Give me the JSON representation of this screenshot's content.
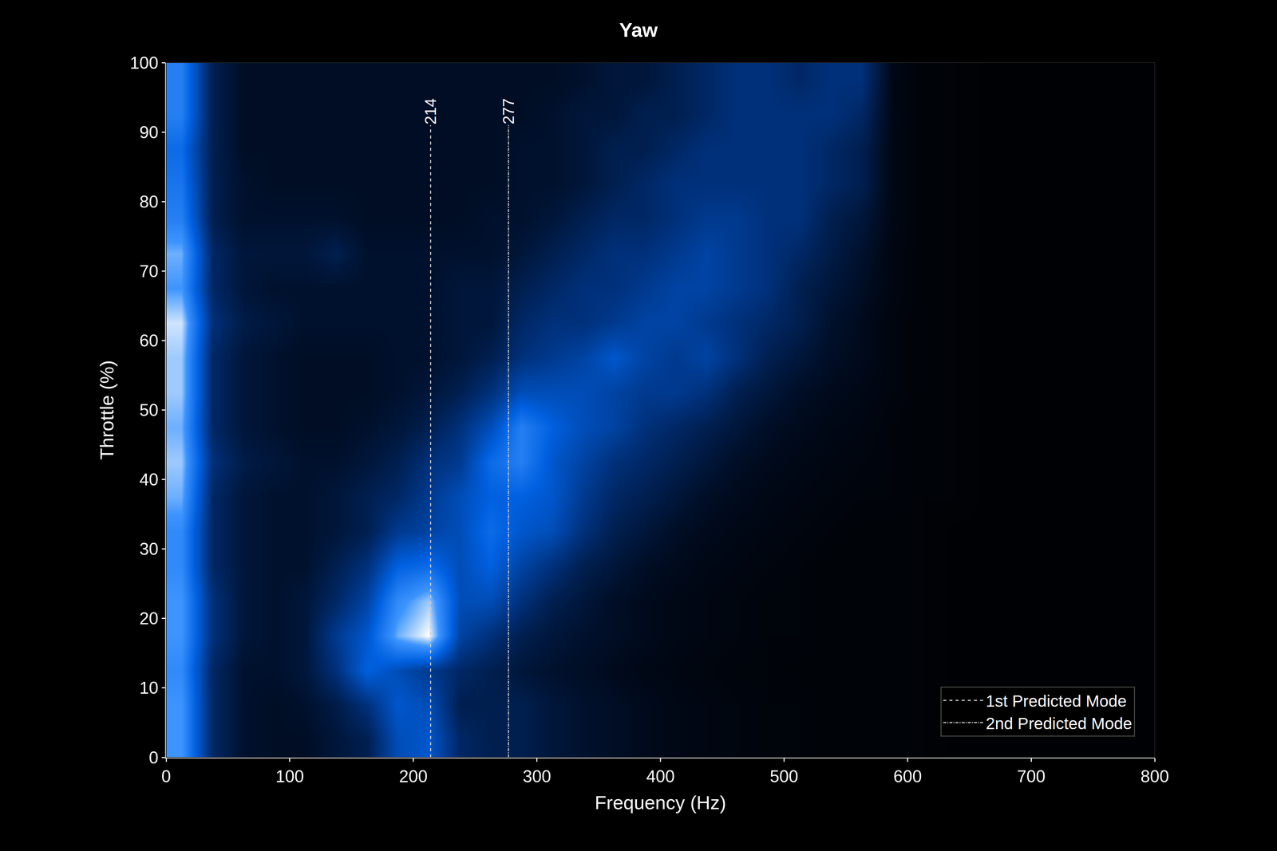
{
  "chart_data": {
    "type": "heatmap",
    "title": "Yaw",
    "x_label": "Frequency (Hz)",
    "y_label": "Throttle (%)",
    "xlim": [
      0,
      800
    ],
    "ylim": [
      0,
      100
    ],
    "xticks": [
      0,
      100,
      200,
      300,
      400,
      500,
      600,
      700,
      800
    ],
    "yticks": [
      0,
      10,
      20,
      30,
      40,
      50,
      60,
      70,
      80,
      90,
      100
    ],
    "zlim": [
      0,
      1
    ],
    "legend": "lower right",
    "x": [
      12.5,
      37.5,
      62.5,
      87.5,
      112.5,
      137.5,
      162.5,
      187.5,
      212.5,
      237.5,
      262.5,
      287.5,
      312.5,
      337.5,
      362.5,
      387.5,
      412.5,
      437.5,
      462.5,
      487.5,
      512.5,
      537.5,
      562.5,
      587.5,
      612.5,
      637.5,
      662.5,
      687.5,
      712.5,
      737.5,
      762.5,
      787.5
    ],
    "y": [
      2.5,
      7.5,
      12.5,
      17.5,
      22.5,
      27.5,
      32.5,
      37.5,
      42.5,
      47.5,
      52.5,
      57.5,
      62.5,
      67.5,
      72.5,
      77.5,
      82.5,
      87.5,
      92.5,
      97.5
    ],
    "z": [
      [
        0.8,
        0.25,
        0.12,
        0.1,
        0.1,
        0.15,
        0.2,
        0.45,
        0.5,
        0.25,
        0.2,
        0.2,
        0.15,
        0.12,
        0.1,
        0.08,
        0.06,
        0.05,
        0.04,
        0.03,
        0.03,
        0.02,
        0.02,
        0.02,
        0.02,
        0.01,
        0.01,
        0.01,
        0.01,
        0.01,
        0.01,
        0.01
      ],
      [
        0.8,
        0.25,
        0.12,
        0.1,
        0.12,
        0.18,
        0.3,
        0.5,
        0.45,
        0.2,
        0.2,
        0.2,
        0.15,
        0.12,
        0.1,
        0.08,
        0.06,
        0.05,
        0.04,
        0.03,
        0.03,
        0.02,
        0.02,
        0.02,
        0.02,
        0.01,
        0.01,
        0.01,
        0.01,
        0.01,
        0.01,
        0.01
      ],
      [
        0.75,
        0.25,
        0.12,
        0.12,
        0.15,
        0.3,
        0.55,
        0.45,
        0.35,
        0.25,
        0.2,
        0.15,
        0.12,
        0.1,
        0.08,
        0.06,
        0.05,
        0.04,
        0.03,
        0.03,
        0.02,
        0.02,
        0.02,
        0.02,
        0.02,
        0.01,
        0.01,
        0.01,
        0.01,
        0.01,
        0.01,
        0.01
      ],
      [
        0.8,
        0.3,
        0.15,
        0.12,
        0.15,
        0.35,
        0.5,
        0.85,
        1.0,
        0.4,
        0.3,
        0.2,
        0.15,
        0.12,
        0.1,
        0.08,
        0.06,
        0.05,
        0.04,
        0.03,
        0.03,
        0.02,
        0.02,
        0.02,
        0.02,
        0.01,
        0.01,
        0.01,
        0.01,
        0.01,
        0.01,
        0.01
      ],
      [
        0.8,
        0.3,
        0.15,
        0.12,
        0.15,
        0.25,
        0.4,
        0.75,
        0.9,
        0.45,
        0.45,
        0.3,
        0.2,
        0.15,
        0.1,
        0.08,
        0.06,
        0.05,
        0.04,
        0.03,
        0.03,
        0.02,
        0.02,
        0.02,
        0.02,
        0.01,
        0.01,
        0.01,
        0.01,
        0.01,
        0.01,
        0.01
      ],
      [
        0.75,
        0.25,
        0.15,
        0.12,
        0.12,
        0.2,
        0.3,
        0.55,
        0.6,
        0.45,
        0.55,
        0.4,
        0.3,
        0.2,
        0.15,
        0.1,
        0.08,
        0.06,
        0.05,
        0.04,
        0.03,
        0.02,
        0.02,
        0.02,
        0.02,
        0.01,
        0.01,
        0.01,
        0.01,
        0.01,
        0.01,
        0.01
      ],
      [
        0.75,
        0.25,
        0.15,
        0.12,
        0.12,
        0.15,
        0.2,
        0.35,
        0.4,
        0.45,
        0.6,
        0.5,
        0.45,
        0.3,
        0.2,
        0.15,
        0.1,
        0.08,
        0.06,
        0.05,
        0.04,
        0.03,
        0.02,
        0.02,
        0.02,
        0.01,
        0.01,
        0.01,
        0.01,
        0.01,
        0.01,
        0.01
      ],
      [
        0.85,
        0.25,
        0.15,
        0.12,
        0.12,
        0.15,
        0.2,
        0.25,
        0.35,
        0.45,
        0.55,
        0.55,
        0.5,
        0.35,
        0.25,
        0.2,
        0.15,
        0.1,
        0.08,
        0.06,
        0.05,
        0.04,
        0.03,
        0.03,
        0.02,
        0.02,
        0.01,
        0.01,
        0.01,
        0.01,
        0.01,
        0.01
      ],
      [
        0.9,
        0.3,
        0.18,
        0.15,
        0.12,
        0.12,
        0.15,
        0.2,
        0.3,
        0.35,
        0.6,
        0.7,
        0.5,
        0.4,
        0.3,
        0.25,
        0.2,
        0.15,
        0.1,
        0.08,
        0.06,
        0.05,
        0.04,
        0.03,
        0.02,
        0.02,
        0.01,
        0.01,
        0.01,
        0.01,
        0.01,
        0.01
      ],
      [
        0.85,
        0.25,
        0.15,
        0.12,
        0.1,
        0.1,
        0.12,
        0.15,
        0.2,
        0.3,
        0.45,
        0.7,
        0.55,
        0.45,
        0.4,
        0.3,
        0.25,
        0.2,
        0.15,
        0.1,
        0.08,
        0.06,
        0.05,
        0.03,
        0.02,
        0.02,
        0.01,
        0.01,
        0.01,
        0.01,
        0.01,
        0.01
      ],
      [
        0.9,
        0.25,
        0.15,
        0.12,
        0.1,
        0.1,
        0.1,
        0.12,
        0.15,
        0.2,
        0.3,
        0.45,
        0.45,
        0.45,
        0.4,
        0.35,
        0.35,
        0.3,
        0.2,
        0.15,
        0.1,
        0.08,
        0.06,
        0.04,
        0.02,
        0.02,
        0.01,
        0.01,
        0.01,
        0.01,
        0.01,
        0.01
      ],
      [
        0.9,
        0.25,
        0.15,
        0.12,
        0.1,
        0.1,
        0.1,
        0.12,
        0.12,
        0.15,
        0.2,
        0.3,
        0.35,
        0.4,
        0.5,
        0.4,
        0.35,
        0.4,
        0.3,
        0.2,
        0.15,
        0.1,
        0.08,
        0.04,
        0.02,
        0.02,
        0.01,
        0.01,
        0.01,
        0.01,
        0.01,
        0.01
      ],
      [
        0.95,
        0.3,
        0.18,
        0.15,
        0.12,
        0.12,
        0.12,
        0.12,
        0.12,
        0.15,
        0.15,
        0.25,
        0.3,
        0.3,
        0.35,
        0.4,
        0.4,
        0.35,
        0.3,
        0.25,
        0.2,
        0.12,
        0.08,
        0.04,
        0.02,
        0.02,
        0.01,
        0.01,
        0.01,
        0.01,
        0.01,
        0.01
      ],
      [
        0.8,
        0.25,
        0.15,
        0.12,
        0.12,
        0.12,
        0.12,
        0.12,
        0.12,
        0.15,
        0.15,
        0.2,
        0.25,
        0.3,
        0.3,
        0.35,
        0.4,
        0.4,
        0.35,
        0.3,
        0.2,
        0.15,
        0.1,
        0.05,
        0.02,
        0.02,
        0.01,
        0.01,
        0.01,
        0.01,
        0.01,
        0.01
      ],
      [
        0.85,
        0.25,
        0.15,
        0.15,
        0.15,
        0.2,
        0.12,
        0.12,
        0.12,
        0.12,
        0.12,
        0.15,
        0.2,
        0.25,
        0.3,
        0.3,
        0.35,
        0.4,
        0.35,
        0.3,
        0.25,
        0.18,
        0.12,
        0.05,
        0.02,
        0.02,
        0.01,
        0.01,
        0.01,
        0.01,
        0.01,
        0.01
      ],
      [
        0.7,
        0.2,
        0.12,
        0.12,
        0.12,
        0.12,
        0.1,
        0.1,
        0.1,
        0.1,
        0.12,
        0.12,
        0.15,
        0.2,
        0.25,
        0.25,
        0.3,
        0.35,
        0.35,
        0.3,
        0.3,
        0.2,
        0.15,
        0.06,
        0.02,
        0.02,
        0.01,
        0.01,
        0.01,
        0.01,
        0.01,
        0.01
      ],
      [
        0.65,
        0.2,
        0.12,
        0.1,
        0.1,
        0.1,
        0.1,
        0.1,
        0.1,
        0.1,
        0.1,
        0.12,
        0.12,
        0.15,
        0.2,
        0.25,
        0.3,
        0.3,
        0.3,
        0.3,
        0.3,
        0.25,
        0.2,
        0.06,
        0.02,
        0.02,
        0.01,
        0.01,
        0.01,
        0.01,
        0.01,
        0.01
      ],
      [
        0.6,
        0.2,
        0.1,
        0.1,
        0.1,
        0.1,
        0.1,
        0.1,
        0.1,
        0.1,
        0.1,
        0.12,
        0.12,
        0.15,
        0.2,
        0.2,
        0.25,
        0.3,
        0.3,
        0.3,
        0.3,
        0.25,
        0.2,
        0.06,
        0.02,
        0.02,
        0.01,
        0.01,
        0.01,
        0.01,
        0.01,
        0.01
      ],
      [
        0.7,
        0.2,
        0.1,
        0.1,
        0.1,
        0.1,
        0.1,
        0.1,
        0.1,
        0.1,
        0.1,
        0.1,
        0.12,
        0.15,
        0.15,
        0.2,
        0.2,
        0.25,
        0.3,
        0.3,
        0.3,
        0.3,
        0.25,
        0.06,
        0.02,
        0.02,
        0.01,
        0.01,
        0.01,
        0.01,
        0.01,
        0.01
      ],
      [
        0.7,
        0.2,
        0.1,
        0.1,
        0.1,
        0.1,
        0.1,
        0.1,
        0.1,
        0.1,
        0.1,
        0.1,
        0.1,
        0.12,
        0.15,
        0.15,
        0.2,
        0.25,
        0.3,
        0.3,
        0.25,
        0.3,
        0.3,
        0.06,
        0.02,
        0.02,
        0.01,
        0.01,
        0.01,
        0.01,
        0.01,
        0.01
      ]
    ],
    "modes": [
      {
        "name": "1st Predicted Mode",
        "label": "214",
        "value": 214,
        "extent": [
          0,
          91
        ],
        "line_style": "dash",
        "color": "#d0d0d0"
      },
      {
        "name": "2nd Predicted Mode",
        "label": "277",
        "value": 277,
        "extent": [
          0,
          91
        ],
        "line_style": "dashdot",
        "color": "#d0d0d0"
      }
    ]
  }
}
